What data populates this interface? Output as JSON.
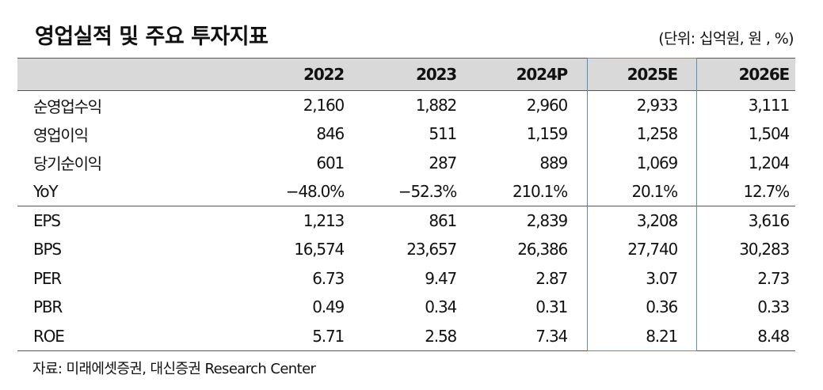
{
  "title": "영업실적 및 주요 투자지표",
  "unit": "(단위: 십억원, 원 , %)",
  "table": {
    "columns": [
      "2022",
      "2023",
      "2024P",
      "2025E",
      "2026E"
    ],
    "rows": [
      {
        "label": "순영업수익",
        "values": [
          "2,160",
          "1,882",
          "2,960",
          "2,933",
          "3,111"
        ]
      },
      {
        "label": "영업이익",
        "values": [
          "846",
          "511",
          "1,159",
          "1,258",
          "1,504"
        ]
      },
      {
        "label": "당기순이익",
        "values": [
          "601",
          "287",
          "889",
          "1,069",
          "1,204"
        ]
      },
      {
        "label": "YoY",
        "values": [
          "−48.0%",
          "−52.3%",
          "210.1%",
          "20.1%",
          "12.7%"
        ]
      },
      {
        "label": "EPS",
        "values": [
          "1,213",
          "861",
          "2,839",
          "3,208",
          "3,616"
        ]
      },
      {
        "label": "BPS",
        "values": [
          "16,574",
          "23,657",
          "26,386",
          "27,740",
          "30,283"
        ]
      },
      {
        "label": "PER",
        "values": [
          "6.73",
          "9.47",
          "2.87",
          "3.07",
          "2.73"
        ]
      },
      {
        "label": "PBR",
        "values": [
          "0.49",
          "0.34",
          "0.31",
          "0.36",
          "0.33"
        ]
      },
      {
        "label": "ROE",
        "values": [
          "5.71",
          "2.58",
          "7.34",
          "8.21",
          "8.48"
        ]
      }
    ]
  },
  "source": "자료: 미래에셋증권, 대신증권 Research Center",
  "colors": {
    "header_bg": "#d9d9d9",
    "highlight_border": "#5b8db8",
    "rule": "#555555"
  }
}
